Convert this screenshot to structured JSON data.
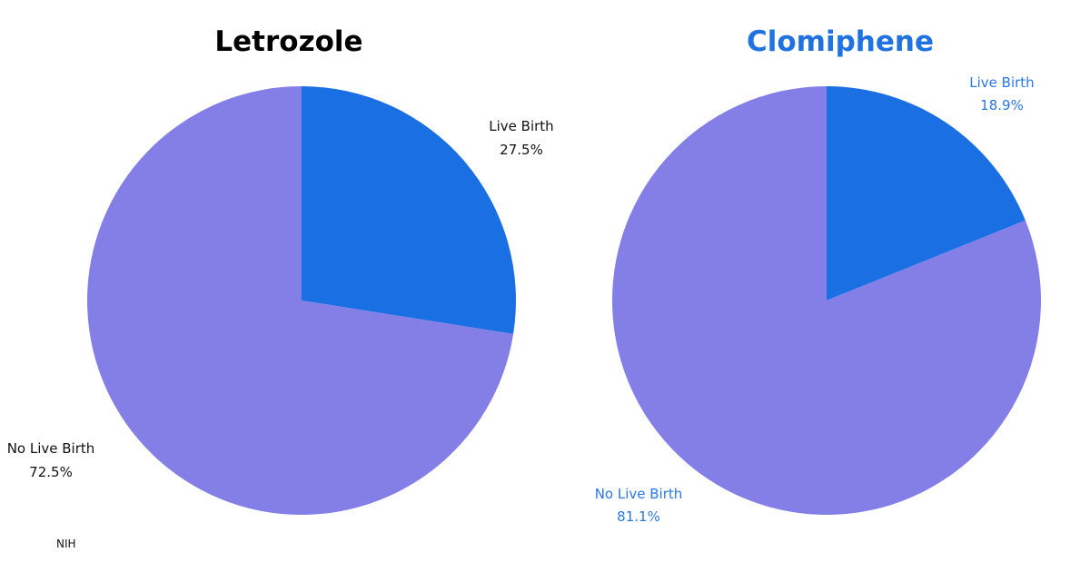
{
  "chart_data": [
    {
      "type": "pie",
      "title": "Letrozole",
      "title_color": "#000000",
      "label_color": "#111111",
      "slices": [
        {
          "name": "Live Birth",
          "value": 27.5,
          "label": "27.5%",
          "color": "#1a70e3"
        },
        {
          "name": "No Live Birth",
          "value": 72.5,
          "label": "72.5%",
          "color": "#837fe7"
        }
      ]
    },
    {
      "type": "pie",
      "title": "Clomiphene",
      "title_color": "#1f72e0",
      "label_color": "#2a77e2",
      "slices": [
        {
          "name": "Live Birth",
          "value": 18.9,
          "label": "18.9%",
          "color": "#1a70e3"
        },
        {
          "name": "No Live Birth",
          "value": 81.1,
          "label": "81.1%",
          "color": "#837fe7"
        }
      ]
    }
  ],
  "source": "NIH"
}
